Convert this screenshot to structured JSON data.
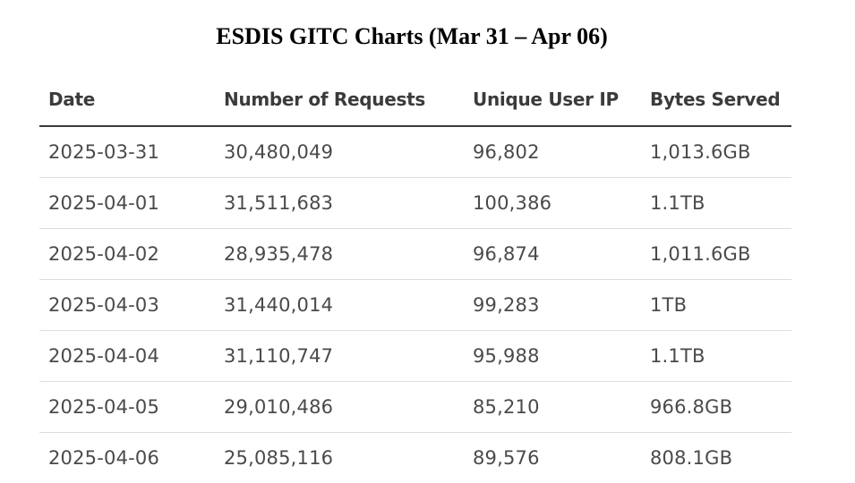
{
  "title": "ESDIS GITC Charts (Mar 31 – Apr 06)",
  "chart_data": {
    "type": "table",
    "title": "ESDIS GITC Charts (Mar 31 – Apr 06)",
    "columns": [
      "Date",
      "Number of Requests",
      "Unique User IP",
      "Bytes Served"
    ],
    "rows": [
      [
        "2025-03-31",
        "30,480,049",
        "96,802",
        "1,013.6GB"
      ],
      [
        "2025-04-01",
        "31,511,683",
        "100,386",
        "1.1TB"
      ],
      [
        "2025-04-02",
        "28,935,478",
        "96,874",
        "1,011.6GB"
      ],
      [
        "2025-04-03",
        "31,440,014",
        "99,283",
        "1TB"
      ],
      [
        "2025-04-04",
        "31,110,747",
        "95,988",
        "1.1TB"
      ],
      [
        "2025-04-05",
        "29,010,486",
        "85,210",
        "966.8GB"
      ],
      [
        "2025-04-06",
        "25,085,116",
        "89,576",
        "808.1GB"
      ]
    ]
  }
}
